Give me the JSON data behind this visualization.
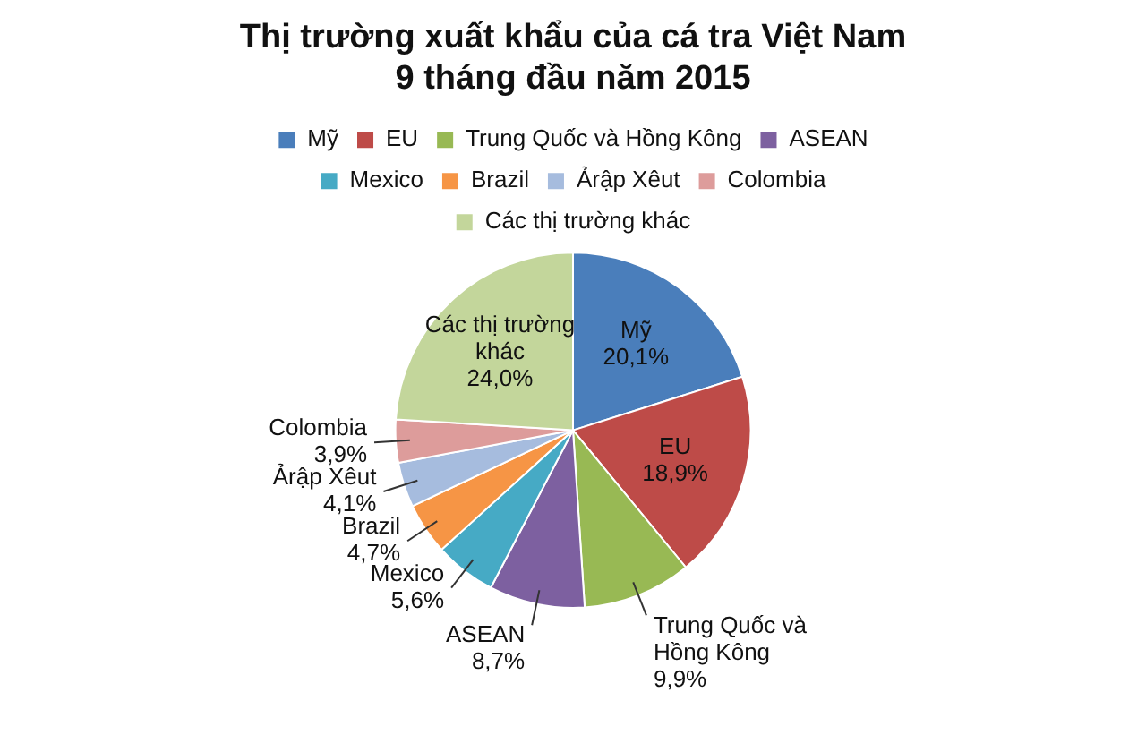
{
  "chart_data": {
    "type": "pie",
    "title": "Thị trường xuất khẩu của cá tra Việt Nam",
    "subtitle": "9 tháng đầu năm 2015",
    "categories": [
      "Mỹ",
      "EU",
      "Trung Quốc và Hồng Kông",
      "ASEAN",
      "Mexico",
      "Brazil",
      "Ảrập Xêut",
      "Colombia",
      "Các thị trường khác"
    ],
    "values": [
      20.1,
      18.9,
      9.9,
      8.7,
      5.6,
      4.7,
      4.1,
      3.9,
      24.0
    ],
    "value_labels": [
      "20,1%",
      "18,9%",
      "9,9%",
      "8,7%",
      "5,6%",
      "4,7%",
      "4,1%",
      "3,9%",
      "24,0%"
    ],
    "colors": [
      "#4a7ebb",
      "#be4b48",
      "#98b954",
      "#7d60a0",
      "#46aac5",
      "#f69545",
      "#a6bcde",
      "#dd9c9b",
      "#c3d69b"
    ],
    "legend": "top"
  }
}
